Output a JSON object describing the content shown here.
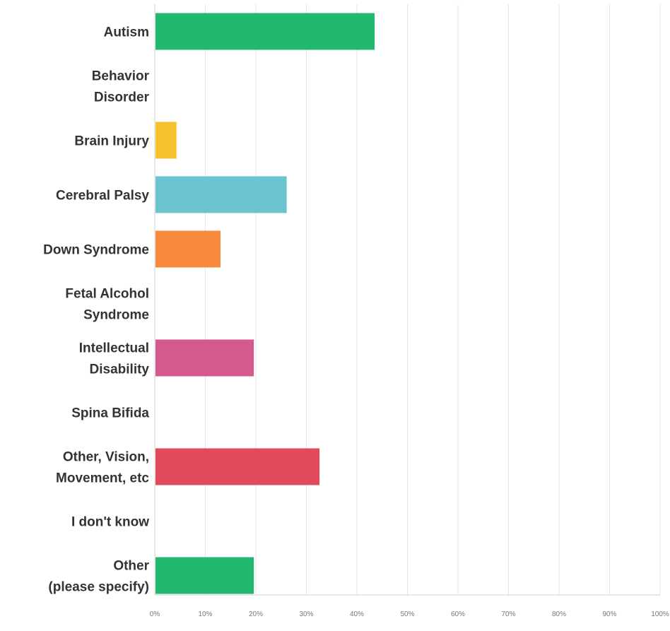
{
  "chart_data": {
    "type": "bar",
    "orientation": "horizontal",
    "categories": [
      "Autism",
      "Behavior\nDisorder",
      "Brain Injury",
      "Cerebral Palsy",
      "Down Syndrome",
      "Fetal Alcohol\nSyndrome",
      "Intellectual\nDisability",
      "Spina Bifida",
      "Other, Vision,\nMovement, etc",
      "I don't know",
      "Other\n(please specify)"
    ],
    "values": [
      43.5,
      0,
      4.3,
      26.1,
      13.0,
      0,
      19.6,
      0,
      32.6,
      0,
      19.6
    ],
    "colors": [
      "#22b86f",
      "#7dc6d0",
      "#f6c22d",
      "#6cc3cf",
      "#f6893e",
      "#9b6fc7",
      "#d35a8c",
      "#8bc34a",
      "#e04a5c",
      "#5aa7de",
      "#22b86f"
    ],
    "xlim": [
      0,
      100
    ],
    "xticks": [
      "0%",
      "10%",
      "20%",
      "30%",
      "40%",
      "50%",
      "60%",
      "70%",
      "80%",
      "90%",
      "100%"
    ],
    "grid": true,
    "legend": "none",
    "title": "",
    "xlabel": "",
    "ylabel": ""
  }
}
